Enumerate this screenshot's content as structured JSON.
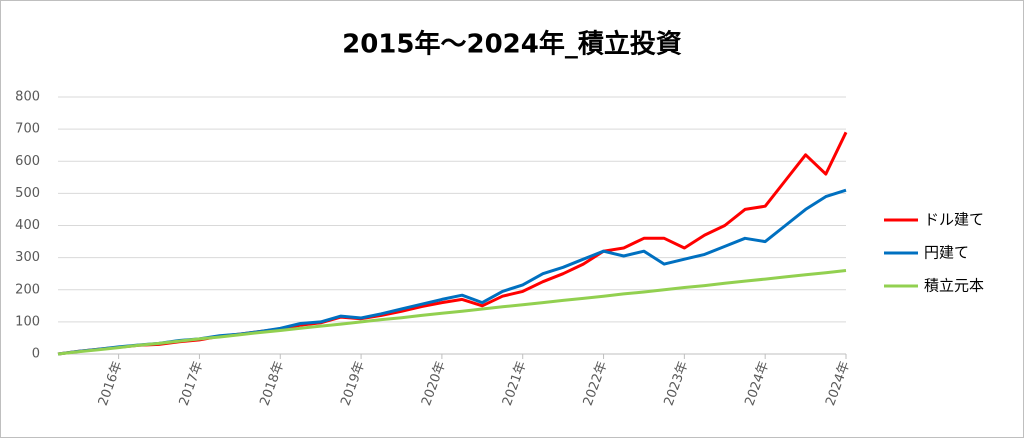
{
  "chart_data": {
    "type": "line",
    "title": "2015年～2024年_積立投資",
    "categories": [
      null,
      null,
      null,
      "2016年",
      null,
      null,
      null,
      "2017年",
      null,
      null,
      null,
      "2018年",
      null,
      null,
      null,
      "2019年",
      null,
      null,
      null,
      "2020年",
      null,
      null,
      null,
      "2021年",
      null,
      null,
      null,
      "2022年",
      null,
      null,
      null,
      "2023年",
      null,
      null,
      null,
      "2024年",
      null,
      null,
      null,
      "2024年"
    ],
    "series": [
      {
        "name": "ドル建て",
        "color": "#ff0000",
        "values": [
          0,
          8,
          15,
          21,
          27,
          30,
          38,
          44,
          55,
          62,
          70,
          78,
          90,
          97,
          115,
          110,
          120,
          133,
          148,
          160,
          170,
          150,
          180,
          195,
          225,
          250,
          280,
          320,
          330,
          360,
          360,
          330,
          370,
          400,
          450,
          460,
          540,
          620,
          560,
          690
        ]
      },
      {
        "name": "円建て",
        "color": "#0070c0",
        "values": [
          0,
          8,
          15,
          22,
          28,
          33,
          42,
          47,
          57,
          62,
          70,
          80,
          95,
          100,
          118,
          112,
          125,
          140,
          155,
          170,
          183,
          160,
          195,
          215,
          250,
          270,
          295,
          320,
          305,
          320,
          280,
          295,
          310,
          335,
          360,
          350,
          400,
          450,
          490,
          510
        ]
      },
      {
        "name": "積立元本",
        "color": "#92d050",
        "values": [
          0,
          7,
          13,
          20,
          27,
          33,
          40,
          47,
          53,
          60,
          67,
          73,
          80,
          87,
          93,
          100,
          107,
          113,
          120,
          127,
          133,
          140,
          147,
          153,
          160,
          167,
          173,
          180,
          187,
          193,
          200,
          207,
          213,
          220,
          227,
          233,
          240,
          247,
          253,
          260
        ]
      }
    ],
    "ylim": [
      0,
      800
    ],
    "yticks": [
      0,
      100,
      200,
      300,
      400,
      500,
      600,
      700,
      800
    ],
    "grid": true,
    "legend": "right"
  }
}
